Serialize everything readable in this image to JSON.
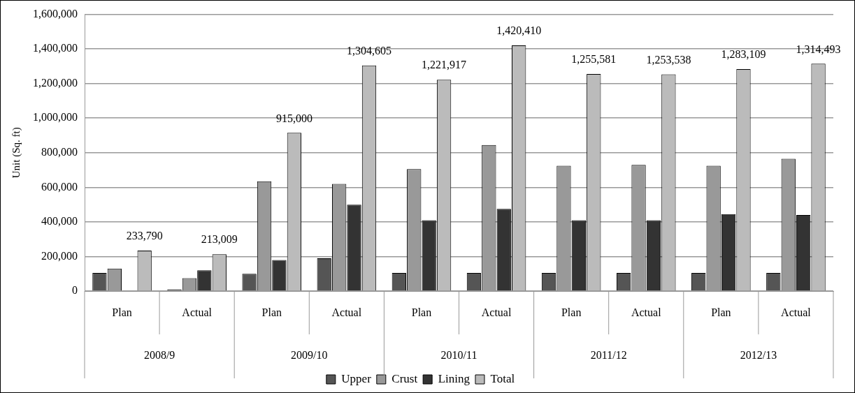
{
  "chart_data": {
    "type": "bar",
    "ylabel": "Unit (Sq. ft)",
    "categories": [
      "Plan",
      "Actual",
      "Plan",
      "Actual",
      "Plan",
      "Actual",
      "Plan",
      "Actual",
      "Plan",
      "Actual"
    ],
    "series": [
      {
        "name": "Upper",
        "color": "#555555",
        "values": [
          105000,
          10000,
          100000,
          190000,
          105000,
          105000,
          105000,
          105000,
          105000,
          105000
        ]
      },
      {
        "name": "Crust",
        "color": "#999999",
        "values": [
          130000,
          75000,
          635000,
          620000,
          705000,
          845000,
          725000,
          730000,
          725000,
          765000
        ]
      },
      {
        "name": "Lining",
        "color": "#333333",
        "values": [
          null,
          120000,
          180000,
          500000,
          410000,
          475000,
          410000,
          410000,
          445000,
          440000
        ]
      },
      {
        "name": "Total",
        "color": "#bbbbbb",
        "values": [
          233790,
          213009,
          915000,
          1304605,
          1221917,
          1420410,
          1255581,
          1253538,
          1283109,
          1314493
        ],
        "value_labels": [
          "233,790",
          "213,009",
          "915,000",
          "1,304,605",
          "1,221,917",
          "1,420,410",
          "1,255,581",
          "1,253,538",
          "1,283,109",
          "1,314,493"
        ]
      }
    ],
    "ylim": [
      0,
      1600000
    ],
    "yticks": [
      {
        "value": 0,
        "label": "0"
      },
      {
        "value": 200000,
        "label": "200,000"
      },
      {
        "value": 400000,
        "label": "400,000"
      },
      {
        "value": 600000,
        "label": "600,000"
      },
      {
        "value": 800000,
        "label": "800,000"
      },
      {
        "value": 1000000,
        "label": "1,000,000"
      },
      {
        "value": 1200000,
        "label": "1,200,000"
      },
      {
        "value": 1400000,
        "label": "1,400,000"
      },
      {
        "value": 1600000,
        "label": "1,600,000"
      }
    ],
    "grid": "y",
    "legend": "bottom",
    "annotations": [
      "2008/9",
      "2009/10",
      "2010/11",
      "2011/12",
      "2012/13"
    ]
  }
}
